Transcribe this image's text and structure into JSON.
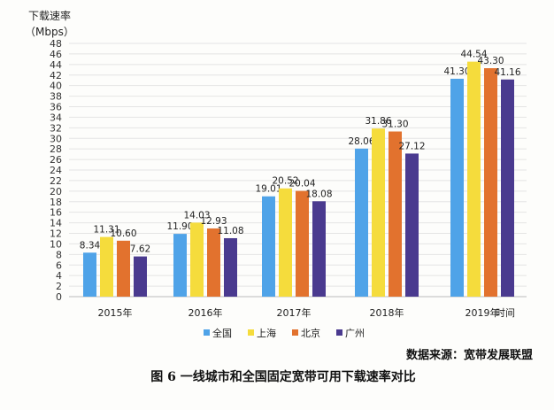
{
  "chart_data": {
    "type": "bar",
    "ylabel": "下载速率",
    "yunit": "（Mbps）",
    "xlabel": "时间",
    "categories": [
      "2015年",
      "2016年",
      "2017年",
      "2018年",
      "2019年"
    ],
    "ylim": [
      0,
      48
    ],
    "ytick_step": 2,
    "grid": true,
    "legend_position": "bottom",
    "series": [
      {
        "name": "全国",
        "color": "#4fa3e8",
        "values": [
          8.34,
          11.9,
          19.01,
          28.06,
          41.3
        ]
      },
      {
        "name": "上海",
        "color": "#f5dc3c",
        "values": [
          11.31,
          14.03,
          20.52,
          31.86,
          44.54
        ]
      },
      {
        "name": "北京",
        "color": "#e2722e",
        "values": [
          10.6,
          12.93,
          20.04,
          31.3,
          43.3
        ]
      },
      {
        "name": "广州",
        "color": "#4a3a8f",
        "values": [
          7.62,
          11.08,
          18.08,
          27.12,
          41.16
        ]
      }
    ],
    "value_labels": [
      [
        "8.34",
        "11.90",
        "19.01",
        "28.06",
        "41.30"
      ],
      [
        "11.31",
        "14.03",
        "20.52",
        "31.86",
        "44.54"
      ],
      [
        "10.60",
        "12.93",
        "20.04",
        "31.30",
        "43.30"
      ],
      [
        "7.62",
        "11.08",
        "18.08",
        "27.12",
        "41.16"
      ]
    ]
  },
  "source": "数据来源：宽带发展联盟",
  "caption": "图 6  一线城市和全国固定宽带可用下载速率对比"
}
